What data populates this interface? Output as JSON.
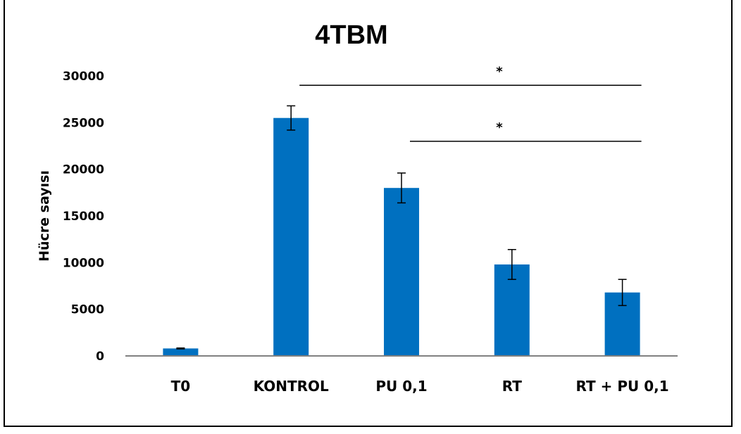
{
  "chart_data": {
    "type": "bar",
    "title": "4TBM",
    "ylabel": "Hücre sayısı",
    "xlabel": "",
    "categories": [
      "T0",
      "KONTROL",
      "PU 0,1",
      "RT",
      "RT + PU 0,1"
    ],
    "values": [
      800,
      25500,
      18000,
      9800,
      6800
    ],
    "error": [
      50,
      1300,
      1600,
      1600,
      1400
    ],
    "ylim": [
      0,
      30000
    ],
    "yticks": [
      0,
      5000,
      10000,
      15000,
      20000,
      25000,
      30000
    ],
    "ytick_labels": [
      "0",
      "5000",
      "10000",
      "15000",
      "20000",
      "25000",
      "30000"
    ],
    "grid": false,
    "bar_color": "#0070C0",
    "significance": [
      {
        "from": "KONTROL",
        "to": "RT + PU 0,1",
        "label": "*",
        "level": 29000
      },
      {
        "from": "PU 0,1",
        "to": "RT + PU 0,1",
        "label": "*",
        "level": 23000
      }
    ]
  }
}
